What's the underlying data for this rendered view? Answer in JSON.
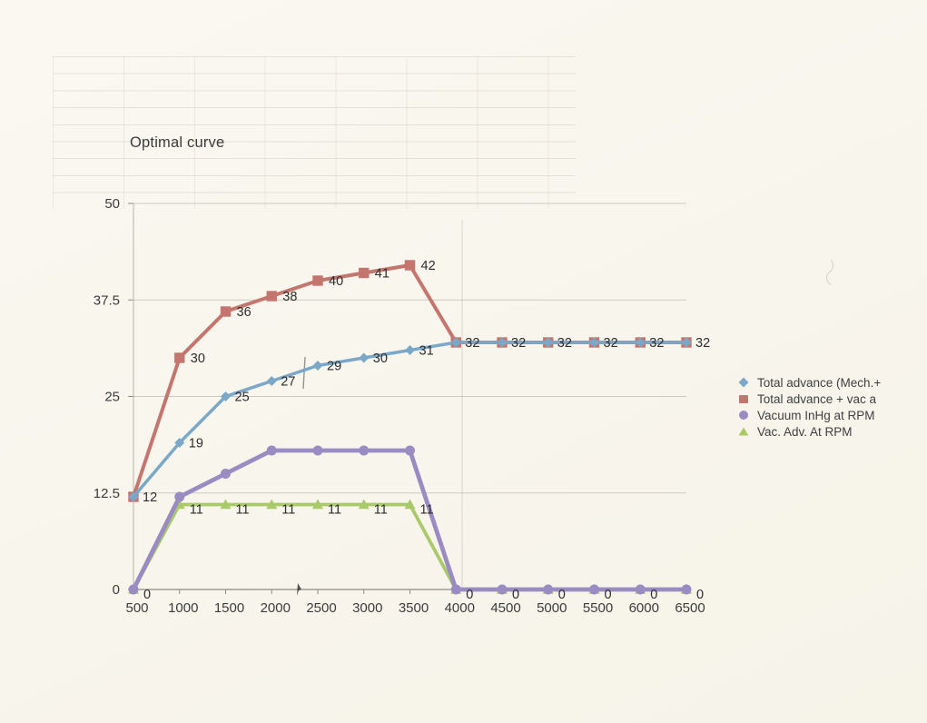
{
  "chart_data": {
    "type": "line",
    "title": "Optimal curve",
    "x": [
      500,
      1000,
      1500,
      2000,
      2500,
      3000,
      3500,
      4000,
      4500,
      5000,
      5500,
      6000,
      6500
    ],
    "x_tick_labels": [
      "500",
      "1000",
      "1500",
      "2000",
      "2500",
      "3000",
      "3500",
      "4000",
      "4500",
      "5000",
      "5500",
      "6000",
      "6500"
    ],
    "xlabel": "",
    "ylabel": "",
    "ylim": [
      0,
      50
    ],
    "y_ticks": [
      0,
      12.5,
      25,
      37.5,
      50
    ],
    "y_tick_labels": [
      "0",
      "12.5",
      "25",
      "37.5",
      "50"
    ],
    "grid": "horizontal",
    "legend_position": "right",
    "series": [
      {
        "name": "Total advance (Mech.+",
        "marker": "diamond",
        "color": "#7ba8c9",
        "values": [
          12,
          19,
          25,
          27,
          29,
          30,
          31,
          32,
          32,
          32,
          32,
          32,
          32
        ],
        "labels": [
          "12",
          "19",
          "25",
          "27",
          "29",
          "30",
          "31",
          "32",
          "32",
          "32",
          "32",
          "32",
          "32"
        ]
      },
      {
        "name": "Total advance + vac a",
        "marker": "square",
        "color": "#c4756e",
        "values": [
          12,
          30,
          36,
          38,
          40,
          41,
          42,
          32,
          32,
          32,
          32,
          32,
          32
        ],
        "labels": [
          null,
          "30",
          "36",
          "38",
          "40",
          "41",
          "42",
          null,
          null,
          null,
          null,
          null,
          null
        ]
      },
      {
        "name": "Vacuum InHg at RPM",
        "marker": "circle",
        "color": "#9a8cc2",
        "values": [
          0,
          12,
          15,
          18,
          18,
          18,
          18,
          0,
          0,
          0,
          0,
          0,
          0
        ],
        "labels": [
          null,
          null,
          null,
          null,
          null,
          null,
          null,
          null,
          null,
          null,
          null,
          null,
          null
        ]
      },
      {
        "name": "Vac. Adv. At RPM",
        "marker": "triangle",
        "color": "#a9c96b",
        "values": [
          0,
          11,
          11,
          11,
          11,
          11,
          11,
          0,
          0,
          0,
          0,
          0,
          0
        ],
        "labels": [
          "0",
          "11",
          "11",
          "11",
          "11",
          "11",
          "11",
          "0",
          "0",
          "0",
          "0",
          "0",
          "0"
        ]
      }
    ],
    "colors": {
      "grid_line": "#cfc9c1",
      "axis_line": "#8f8a82",
      "label_text": "#2d2d2d",
      "tick_text": "#3c3c3c"
    }
  }
}
